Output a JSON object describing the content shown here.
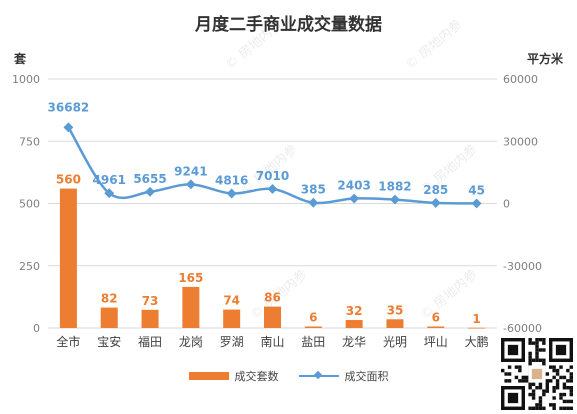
{
  "title": "月度二手商业成交量数据",
  "units": {
    "left": "套",
    "right": "平方米"
  },
  "legend": {
    "bar": "成交套数",
    "line": "成交面积"
  },
  "watermark": "房地内参",
  "colors": {
    "bar": "#ED7D31",
    "line": "#5B9BD5",
    "grid": "#D9D9D9",
    "axis_text": "#7F7F7F"
  },
  "chart_data": {
    "type": "bar",
    "categories": [
      "全市",
      "宝安",
      "福田",
      "龙岗",
      "罗湖",
      "南山",
      "盐田",
      "龙华",
      "光明",
      "坪山",
      "大鹏"
    ],
    "series": [
      {
        "name": "成交套数",
        "type": "bar",
        "axis": "left",
        "values": [
          560,
          82,
          73,
          165,
          74,
          86,
          6,
          32,
          35,
          6,
          1
        ]
      },
      {
        "name": "成交面积",
        "type": "line",
        "axis": "right",
        "values": [
          36682,
          4961,
          5655,
          9241,
          4816,
          7010,
          385,
          2403,
          1882,
          285,
          45
        ]
      }
    ],
    "yleft": {
      "min": 0,
      "max": 1000,
      "ticks": [
        0,
        250,
        500,
        750,
        1000
      ]
    },
    "yright": {
      "min": -60000,
      "max": 60000,
      "ticks": [
        -60000,
        -30000,
        0,
        30000,
        60000
      ]
    },
    "grid": true,
    "legend_position": "bottom"
  }
}
